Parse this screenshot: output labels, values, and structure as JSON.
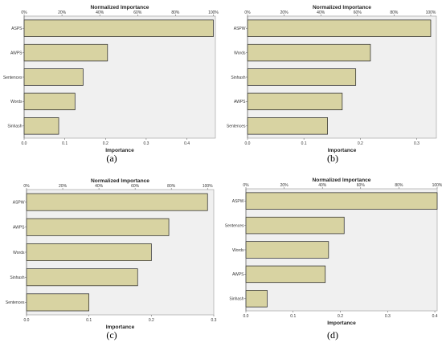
{
  "chart_data": [
    {
      "type": "bar",
      "orientation": "horizontal",
      "panel_label": "(a)",
      "top_axis_title": "Normalized Importance",
      "top_ticks": [
        "0%",
        "20%",
        "40%",
        "60%",
        "80%",
        "100%"
      ],
      "xlabel": "Importance",
      "x_ticks": [
        "0.0",
        "0.1",
        "0.2",
        "0.3",
        "0.4"
      ],
      "xlim": [
        0,
        0.47
      ],
      "categories": [
        "ASPS",
        "AWPS",
        "Sentences",
        "Words",
        "Sinhash"
      ],
      "values": [
        0.465,
        0.205,
        0.145,
        0.125,
        0.085
      ],
      "grid": false
    },
    {
      "type": "bar",
      "orientation": "horizontal",
      "panel_label": "(b)",
      "top_axis_title": "Normalized Importance",
      "top_ticks": [
        "0%",
        "20%",
        "40%",
        "60%",
        "80%",
        "100%"
      ],
      "xlabel": "Importance",
      "x_ticks": [
        "0.0",
        "0.1",
        "0.2",
        "0.3"
      ],
      "xlim": [
        0,
        0.335
      ],
      "categories": [
        "ASPW",
        "Words",
        "Sinhash",
        "AWPS",
        "Sentences"
      ],
      "values": [
        0.325,
        0.218,
        0.192,
        0.168,
        0.142
      ],
      "grid": false
    },
    {
      "type": "bar",
      "orientation": "horizontal",
      "panel_label": "(c)",
      "top_axis_title": "Normalized Importance",
      "top_ticks": [
        "0%",
        "20%",
        "40%",
        "60%",
        "80%",
        "100%"
      ],
      "xlabel": "Importance",
      "x_ticks": [
        "0.0",
        "0.1",
        "0.2",
        "0.3"
      ],
      "xlim": [
        0,
        0.3
      ],
      "categories": [
        "ASPW",
        "AWPS",
        "Words",
        "Sinhash",
        "Sentences"
      ],
      "values": [
        0.29,
        0.228,
        0.2,
        0.178,
        0.1
      ],
      "grid": false
    },
    {
      "type": "bar",
      "orientation": "horizontal",
      "panel_label": "(d)",
      "top_axis_title": "Normalized Importance",
      "top_ticks": [
        "0%",
        "20%",
        "40%",
        "60%",
        "80%",
        "100%"
      ],
      "xlabel": "Importance",
      "x_ticks": [
        "0.0",
        "0.1",
        "0.2",
        "0.3",
        "0.4"
      ],
      "xlim": [
        0,
        0.405
      ],
      "categories": [
        "ASPW",
        "Sentences",
        "Words",
        "AWPS",
        "Sinhash"
      ],
      "values": [
        0.405,
        0.208,
        0.175,
        0.168,
        0.045
      ],
      "grid": false
    }
  ]
}
